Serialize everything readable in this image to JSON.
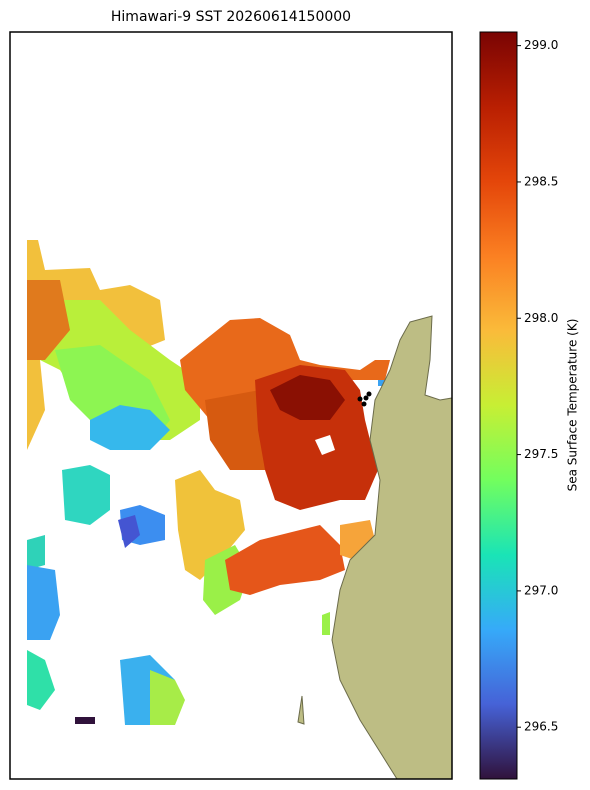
{
  "chart_data": {
    "type": "map",
    "title": "Himawari-9 SST 20260614150000",
    "colorbar": {
      "label": "Sea Surface Temperature (K)",
      "lim": [
        296.31,
        299.05
      ],
      "ticks": [
        296.5,
        {
          "value": 297,
          "label": "297.0"
        },
        297.5,
        {
          "value": 298,
          "label": "298.0"
        },
        298.5,
        {
          "value": 299,
          "label": "299.0"
        }
      ],
      "colormap": [
        "#30123b",
        "#4662d7",
        "#36aaf9",
        "#1ae4b6",
        "#72fe5e",
        "#c7ef34",
        "#fabb3a",
        "#fb8022",
        "#e4460a",
        "#b91f02",
        "#7a0403"
      ]
    }
  }
}
